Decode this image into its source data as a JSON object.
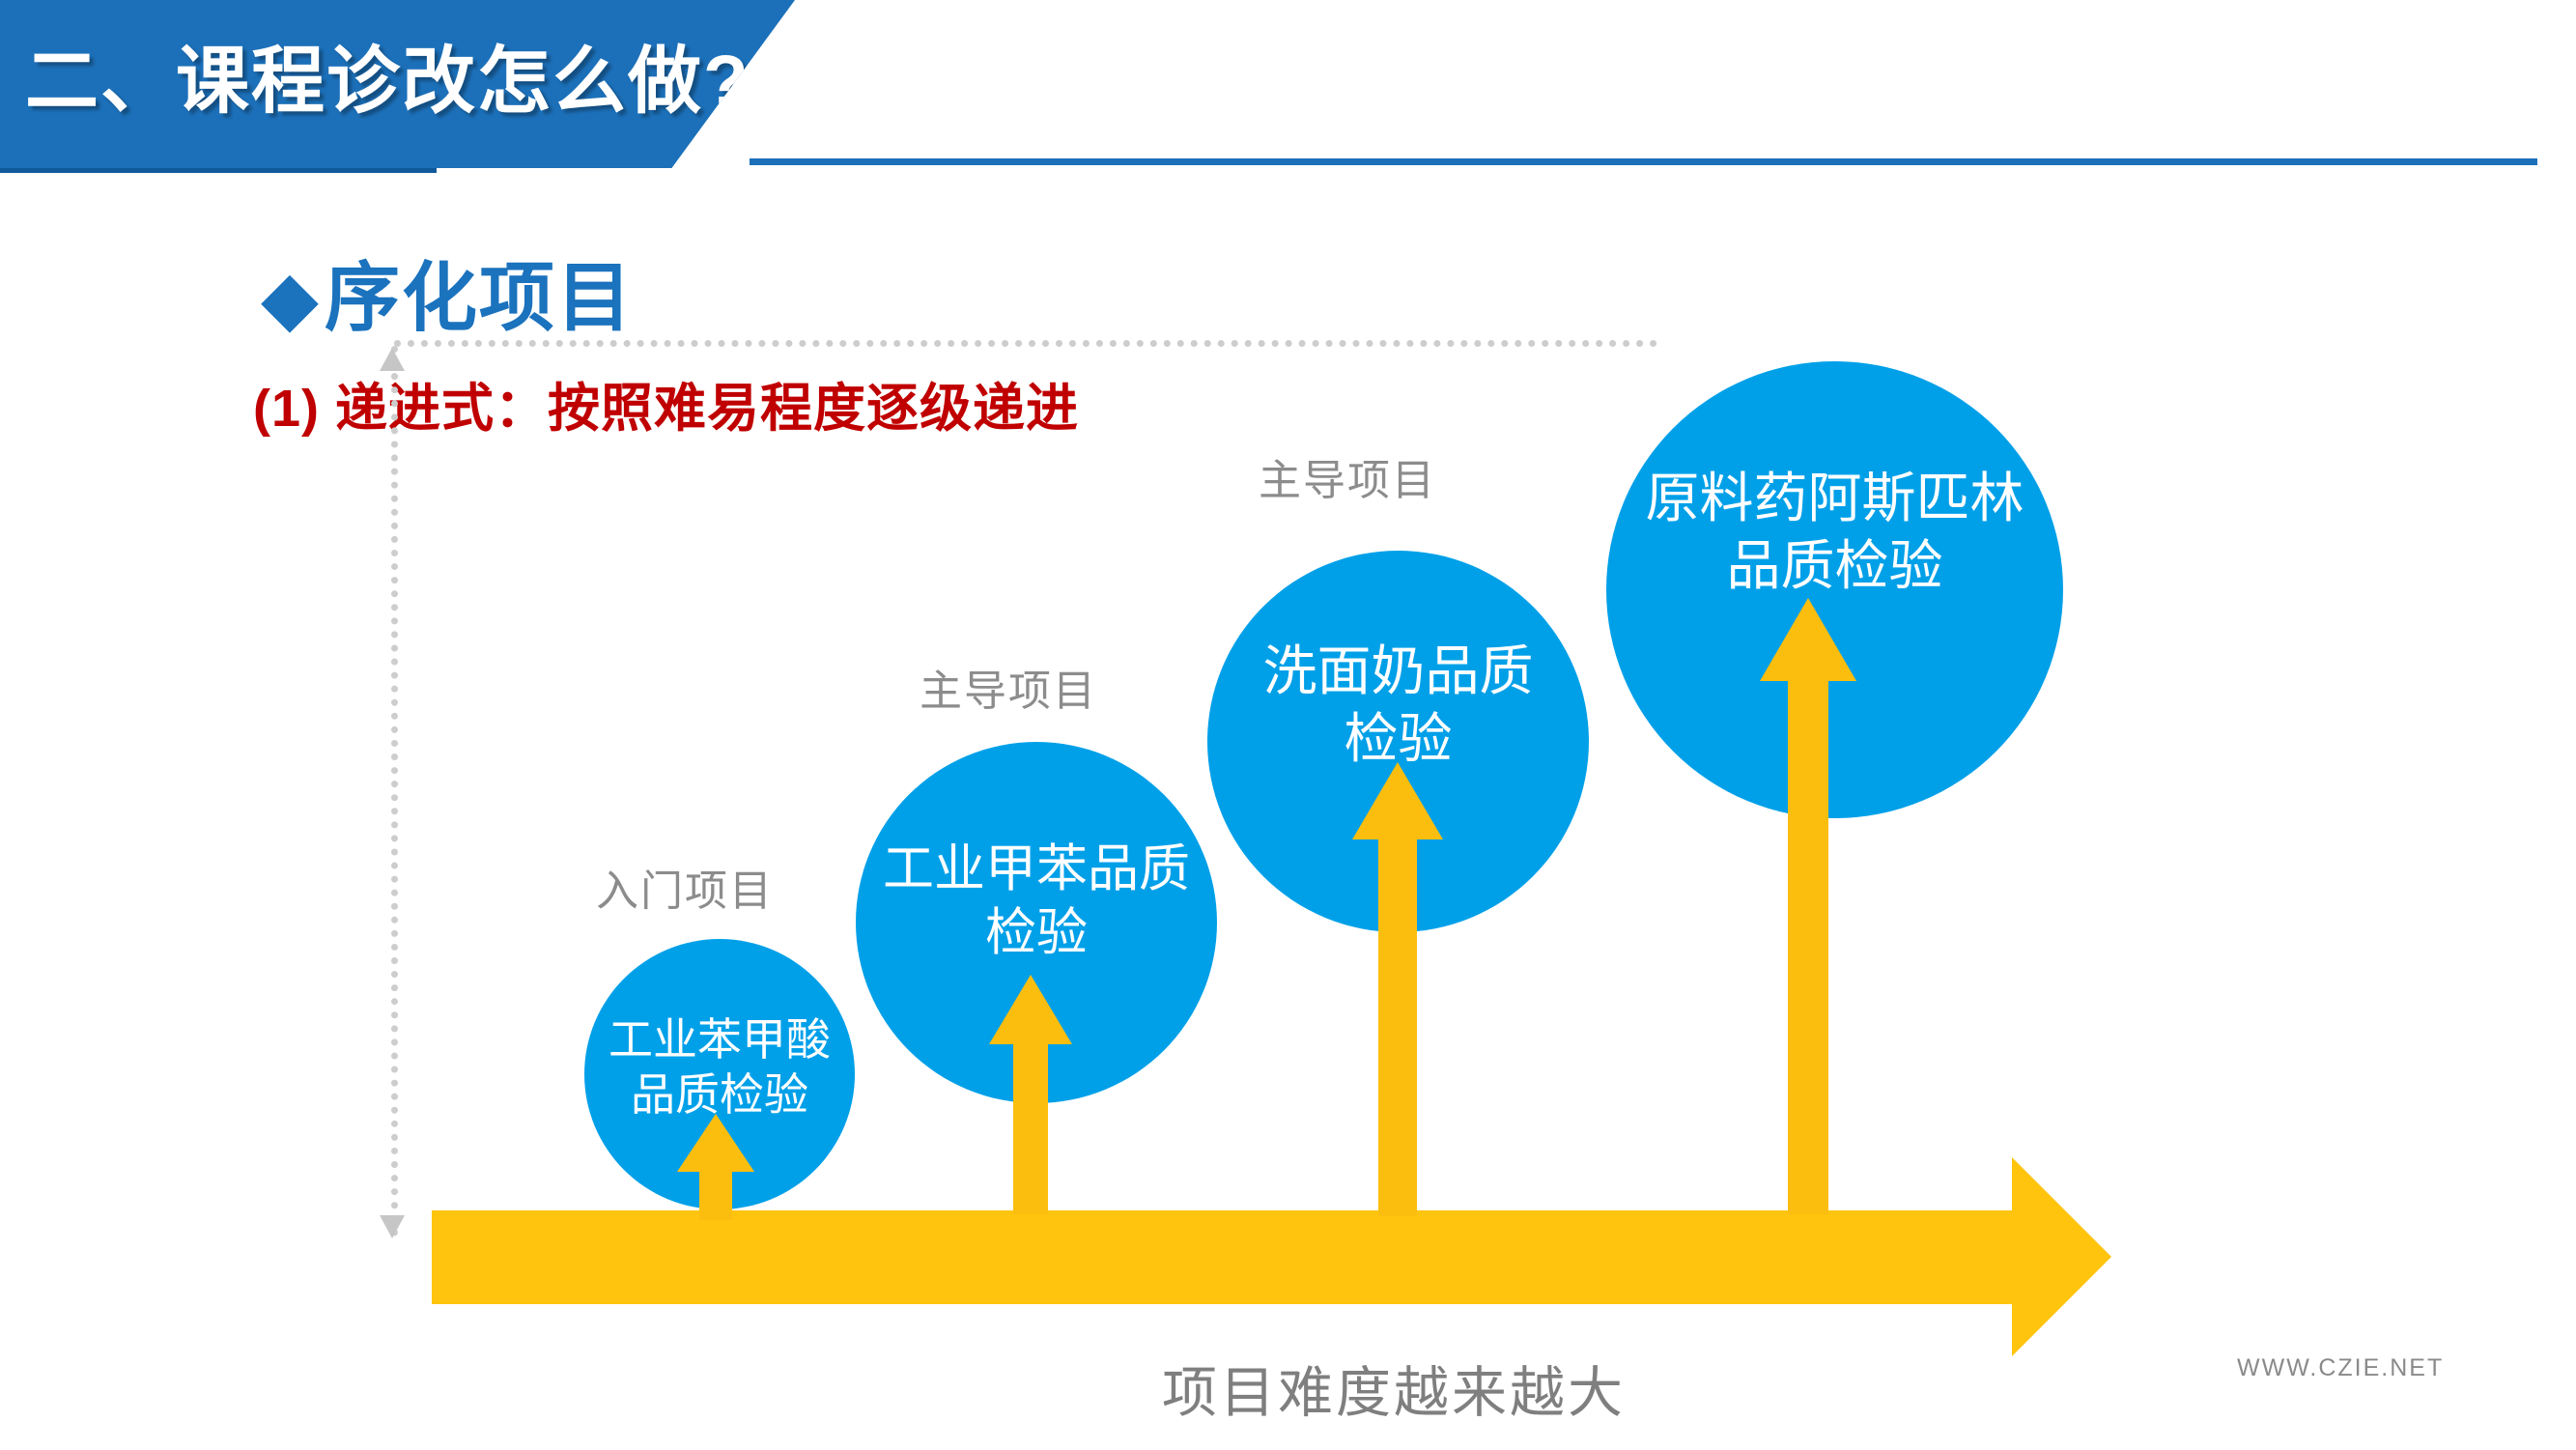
{
  "header": {
    "title": "二、课程诊改怎么做?"
  },
  "section": {
    "bullet": "◆",
    "title": "序化项目",
    "subtitle": "(1) 递进式：按照难易程度逐级递进"
  },
  "projects": [
    {
      "tier_label": "入门项目",
      "line1": "工业苯甲酸",
      "line2": "品质检验"
    },
    {
      "tier_label": "主导项目",
      "line1": "工业甲苯品质",
      "line2": "检验"
    },
    {
      "tier_label": "主导项目",
      "line1": "洗面奶品质",
      "line2": "检验"
    },
    {
      "tier_label": "",
      "line1": "原料药阿斯匹林",
      "line2": "品质检验"
    }
  ],
  "caption": "项目难度越来越大",
  "watermark": "WWW.CZIE.NET",
  "colors": {
    "banner_blue": "#1C70B9",
    "circle_blue": "#00A0E9",
    "gold": "#FEC40E",
    "subtitle_red": "#C00000",
    "label_gray": "#8C8C8C"
  }
}
